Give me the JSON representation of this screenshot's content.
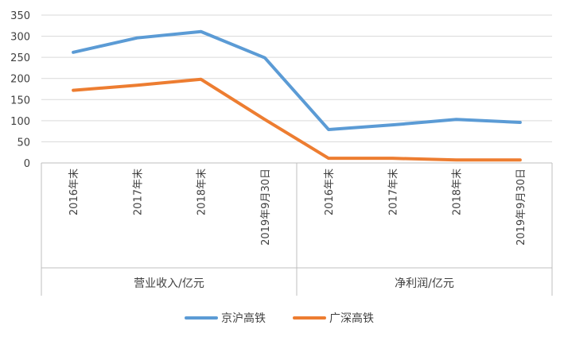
{
  "chart_data": {
    "type": "line",
    "title": "",
    "xlabel": "",
    "ylabel": "",
    "ylim": [
      0,
      350
    ],
    "yticks": [
      0,
      50,
      100,
      150,
      200,
      250,
      300,
      350
    ],
    "grid": "horizontal",
    "legend_position": "bottom",
    "categories": [
      "2016年末",
      "2017年末",
      "2018年末",
      "2019年9月30日",
      "2016年末",
      "2017年末",
      "2018年末",
      "2019年9月30日"
    ],
    "groups": [
      {
        "label": "营业收入/亿元",
        "count": 4
      },
      {
        "label": "净利润/亿元",
        "count": 4
      }
    ],
    "series": [
      {
        "name": "京沪高铁",
        "color": "#5B9BD5",
        "values": [
          262,
          296,
          311,
          249,
          79,
          90,
          103,
          96
        ]
      },
      {
        "name": "广深高铁",
        "color": "#ED7D31",
        "values": [
          172,
          184,
          198,
          103,
          11,
          11,
          7,
          7
        ]
      }
    ]
  }
}
